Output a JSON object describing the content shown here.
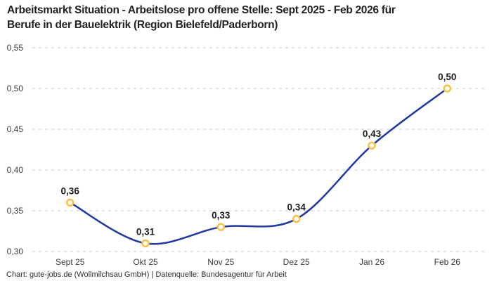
{
  "title": {
    "line1": "Arbeitsmarkt Situation - Arbeitslose pro offene Stelle: Sept 2025 - Feb 2026 für",
    "line2": "Berufe in der Bauelektrik (Region Bielefeld/Paderborn)",
    "full": "Arbeitsmarkt Situation - Arbeitslose pro offene Stelle: Sept 2025 - Feb 2026 für Berufe in der Bauelektrik (Region Bielefeld/Paderborn)"
  },
  "footer": "Chart: gute-jobs.de (Wollmilchsau GmbH) | Datenquelle: Bundesagentur für Arbeit",
  "chart_data": {
    "type": "line",
    "categories": [
      "Sept 25",
      "Okt 25",
      "Nov 25",
      "Dez 25",
      "Jan 26",
      "Feb 26"
    ],
    "values": [
      0.36,
      0.31,
      0.33,
      0.34,
      0.43,
      0.5
    ],
    "value_labels": [
      "0,36",
      "0,31",
      "0,33",
      "0,34",
      "0,43",
      "0,50"
    ],
    "y_ticks": [
      0.3,
      0.35,
      0.4,
      0.45,
      0.5,
      0.55
    ],
    "y_tick_labels": [
      "0,30",
      "0,35",
      "0,40",
      "0,45",
      "0,50",
      "0,55"
    ],
    "ylim": [
      0.3,
      0.55
    ],
    "grid": "horizontal-dashed",
    "legend": "none",
    "smooth": true,
    "line_color": "#2239a2",
    "marker_ring_color": "#f9c13e",
    "marker_fill_color": "#ffffff",
    "grid_color": "#cbcbcb"
  }
}
